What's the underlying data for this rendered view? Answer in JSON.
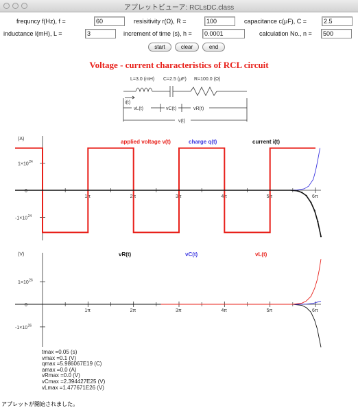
{
  "window": {
    "title": "アプレットビューア: RCLsDC.class",
    "status": "アプレットが開始されました。"
  },
  "controls": {
    "frequency": {
      "label": "frequncy f(Hz), f =",
      "value": "60"
    },
    "resistivity": {
      "label": "resisitivity r(Ω), R =",
      "value": "100"
    },
    "capacitance": {
      "label": "capacitance c(μF), C =",
      "value": "2.5"
    },
    "inductance": {
      "label": "inductance l(mH), L =",
      "value": "3"
    },
    "time_step": {
      "label": "increment of time (s), h =",
      "value": "0.0001"
    },
    "calc_no": {
      "label": "calculation No., n =",
      "value": "500"
    }
  },
  "buttons": {
    "start": "start",
    "clear": "clear",
    "end": "end"
  },
  "heading": "Voltage - current characteristics of RCL circuit",
  "circuit": {
    "inductor_label": "L=3.0 (mH)",
    "capacitor_label": "C=2.5 (μF)",
    "resistor_label": "R=100.0 (Ω)",
    "current_label": "i(t)",
    "vl_label": "vL(t)",
    "vc_label": "vC(t)",
    "vr_label": "vR(t)",
    "v_label": "v(t)"
  },
  "colors": {
    "red": "#e8201a",
    "blue": "#3a35e0",
    "black": "#111111"
  },
  "chart_data": [
    {
      "type": "line",
      "ylabel": "(A)",
      "x_unit": "π (multiples of pi)",
      "xlim": [
        0,
        6.15
      ],
      "x_ticks": [
        {
          "v": 1,
          "label": "1π"
        },
        {
          "v": 2,
          "label": "2π"
        },
        {
          "v": 3,
          "label": "3π"
        },
        {
          "v": 4,
          "label": "4π"
        },
        {
          "v": 5,
          "label": "5π"
        },
        {
          "v": 6,
          "label": "6π"
        }
      ],
      "ylim": [
        -2.1,
        2.1
      ],
      "y_ticks": [
        {
          "v": 1,
          "label": "1×10",
          "exp": "24"
        },
        {
          "v": 0,
          "label": "0",
          "exp": ""
        },
        {
          "v": -1,
          "label": "-1×10",
          "exp": "24"
        }
      ],
      "y_scale_note": "y in units of 1×10^24",
      "series": [
        {
          "name": "applied voltage v(t)",
          "color": "#e8201a",
          "points": [
            [
              -0.45,
              1.55
            ],
            [
              0,
              1.55
            ],
            [
              0,
              -1.55
            ],
            [
              1,
              -1.55
            ],
            [
              1,
              1.55
            ],
            [
              2,
              1.55
            ],
            [
              2,
              -1.55
            ],
            [
              3,
              -1.55
            ],
            [
              3,
              1.55
            ],
            [
              4,
              1.55
            ],
            [
              4,
              -1.55
            ],
            [
              5,
              -1.55
            ],
            [
              5,
              1.55
            ],
            [
              6,
              1.55
            ]
          ]
        },
        {
          "name": "charge q(t)",
          "color": "#3a35e0",
          "points": [
            [
              3,
              0
            ],
            [
              5.4,
              0
            ],
            [
              5.6,
              0.01
            ],
            [
              5.75,
              0.05
            ],
            [
              5.85,
              0.15
            ],
            [
              5.95,
              0.4
            ],
            [
              6.0,
              0.7
            ],
            [
              6.05,
              1.1
            ],
            [
              6.1,
              1.55
            ]
          ]
        },
        {
          "name": "current i(t)",
          "color": "#111111",
          "points": [
            [
              -0.45,
              0
            ],
            [
              5.45,
              0
            ],
            [
              5.6,
              -0.02
            ],
            [
              5.7,
              -0.08
            ],
            [
              5.8,
              -0.2
            ],
            [
              5.9,
              -0.45
            ],
            [
              5.98,
              -0.75
            ],
            [
              6.05,
              -1.15
            ],
            [
              6.12,
              -1.7
            ]
          ]
        }
      ]
    },
    {
      "type": "line",
      "ylabel": "(V)",
      "x_unit": "π (multiples of pi)",
      "xlim": [
        0,
        6.15
      ],
      "x_ticks": [
        {
          "v": 1,
          "label": "1π"
        },
        {
          "v": 2,
          "label": "2π"
        },
        {
          "v": 3,
          "label": "3π"
        },
        {
          "v": 4,
          "label": "4π"
        },
        {
          "v": 5,
          "label": "5π"
        },
        {
          "v": 6,
          "label": "6π"
        }
      ],
      "ylim": [
        -2.4,
        2.4
      ],
      "y_ticks": [
        {
          "v": 1,
          "label": "1×10",
          "exp": "26"
        },
        {
          "v": 0,
          "label": "0",
          "exp": ""
        },
        {
          "v": -1,
          "label": "-1×10",
          "exp": "26"
        }
      ],
      "y_scale_note": "y in units of 1×10^26",
      "series": [
        {
          "name": "vR(t)",
          "color": "#111111",
          "points": [
            [
              -0.45,
              0
            ],
            [
              5.5,
              0
            ],
            [
              5.7,
              -0.05
            ],
            [
              5.8,
              -0.15
            ],
            [
              5.9,
              -0.35
            ],
            [
              5.98,
              -0.7
            ],
            [
              6.04,
              -1.1
            ],
            [
              6.08,
              -1.5
            ],
            [
              6.12,
              -1.9
            ]
          ]
        },
        {
          "name": "vC(t)",
          "color": "#3a35e0",
          "points": [
            [
              3,
              0
            ],
            [
              5.6,
              0
            ],
            [
              5.8,
              0.01
            ],
            [
              5.95,
              0.04
            ],
            [
              6.05,
              0.1
            ],
            [
              6.12,
              0.14
            ]
          ]
        },
        {
          "name": "vL(t)",
          "color": "#e8201a",
          "points": [
            [
              2.6,
              0
            ],
            [
              5.5,
              0
            ],
            [
              5.7,
              0.05
            ],
            [
              5.8,
              0.15
            ],
            [
              5.9,
              0.35
            ],
            [
              5.98,
              0.7
            ],
            [
              6.04,
              1.1
            ],
            [
              6.08,
              1.5
            ],
            [
              6.12,
              2.0
            ]
          ]
        }
      ]
    }
  ],
  "readouts": [
    "tmax =0.05 (s)",
    "vmax =0.1 (V)",
    "qmax =5.986067E19 (C)",
    "amax =0.0 (A)",
    "vRmax =0.0 (V)",
    "vCmax =2.394427E25 (V)",
    "vLmax =1.477671E26 (V)"
  ]
}
